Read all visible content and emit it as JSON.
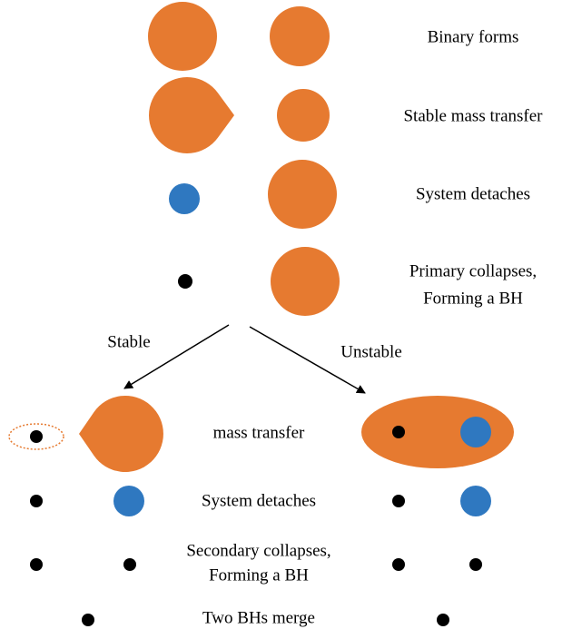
{
  "steps": {
    "binary_forms": "Binary forms",
    "stable_mass_transfer": "Stable mass transfer",
    "system_detaches": "System detaches",
    "primary_collapses": [
      "Primary collapses,",
      "Forming a BH"
    ]
  },
  "branches": {
    "stable": "Stable",
    "unstable": "Unstable"
  },
  "late_steps": {
    "mass_transfer": "mass transfer",
    "system_detaches": "System detaches",
    "secondary_collapses": [
      "Secondary collapses,",
      "Forming a BH"
    ],
    "merge": "Two BHs merge"
  }
}
